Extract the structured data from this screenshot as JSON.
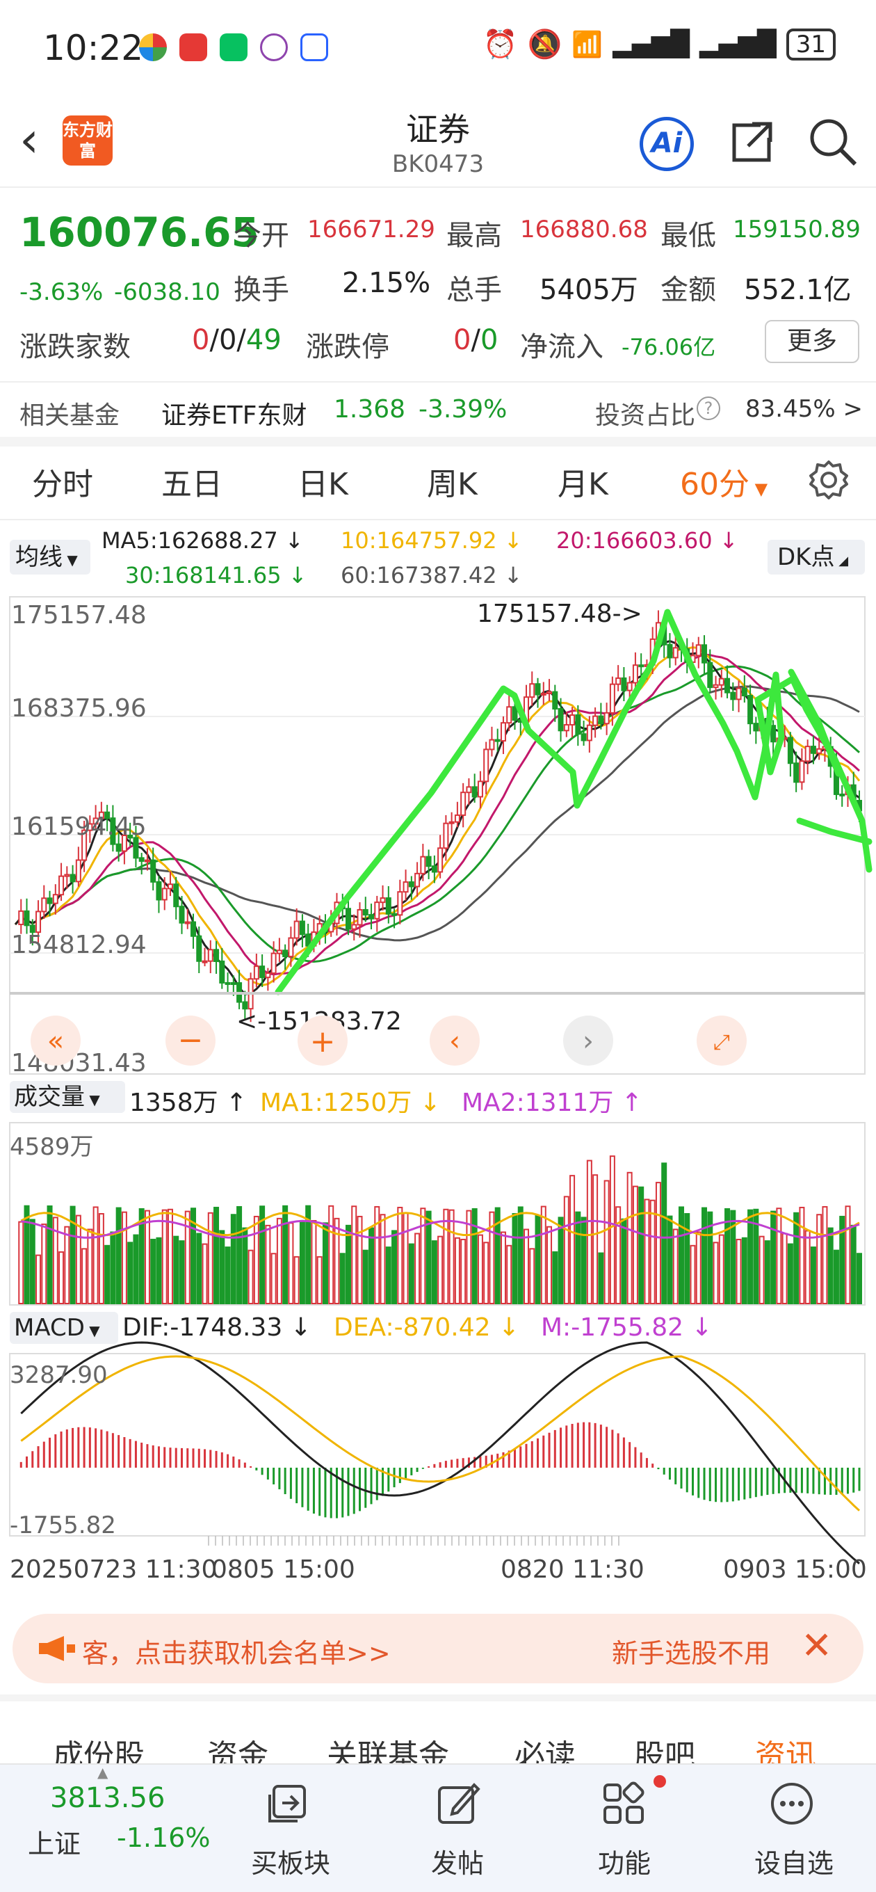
{
  "status_bar": {
    "time": "10:22",
    "battery": "31"
  },
  "header": {
    "logo_text": "东方财富",
    "title": "证券",
    "subtitle": "BK0473",
    "ai_label": "Ai"
  },
  "quote": {
    "price": "160076.65",
    "change_pct": "-3.63%",
    "change": "-6038.10",
    "open_label": "今开",
    "open": "166671.29",
    "high_label": "最高",
    "high": "166880.68",
    "low_label": "最低",
    "low": "159150.89",
    "turnover_label": "换手",
    "turnover": "2.15%",
    "volume_label": "总手",
    "volume": "5405万",
    "amount_label": "金额",
    "amount": "552.1亿",
    "breadth_label": "涨跌家数",
    "breadth_up": "0",
    "breadth_flat": "0",
    "breadth_down": "49",
    "limit_label": "涨跌停",
    "limit_up": "0",
    "limit_down": "0",
    "inflow_label": "净流入",
    "inflow": "-76.06亿",
    "more_label": "更多"
  },
  "fund": {
    "label": "相关基金",
    "name": "证券ETF东财",
    "price": "1.368",
    "change": "-3.39%",
    "ratio_label": "投资占比",
    "ratio": "83.45% >"
  },
  "period_tabs": [
    {
      "label": "分时"
    },
    {
      "label": "五日"
    },
    {
      "label": "日K"
    },
    {
      "label": "周K"
    },
    {
      "label": "月K"
    },
    {
      "label": "60分",
      "active": true
    }
  ],
  "ma_legend": {
    "type_label": "均线",
    "ma5": "MA5:162688.27 ↓",
    "ma10": "10:164757.92 ↓",
    "ma20": "20:166603.60 ↓",
    "ma30": "30:168141.65 ↓",
    "ma60": "60:167387.42 ↓",
    "dk_label": "DK点"
  },
  "kline": {
    "y_labels": [
      "175157.48",
      "168375.96",
      "161594.45",
      "154812.94",
      "148031.43"
    ],
    "high_annotation": "175157.48->",
    "low_annotation": "<-151283.72"
  },
  "volume_panel": {
    "type_label": "成交量",
    "current": "1358万 ↑",
    "ma1": "MA1:1250万 ↓",
    "ma2": "MA2:1311万 ↑",
    "max_label": "4589万"
  },
  "macd_panel": {
    "type_label": "MACD",
    "dif": "DIF:-1748.33 ↓",
    "dea": "DEA:-870.42 ↓",
    "m": "M:-1755.82 ↓",
    "max_label": "3287.90",
    "min_label": "-1755.82"
  },
  "x_axis": {
    "start": "20250723 11:30",
    "mid1": "0805 15:00",
    "mid2": "0820 11:30",
    "end": "0903 15:00"
  },
  "banner": {
    "text": "客，点击获取机会名单>>",
    "right_text": "新手选股不用"
  },
  "bottom_tabs": [
    {
      "label": "成份股"
    },
    {
      "label": "资金"
    },
    {
      "label": "关联基金"
    },
    {
      "label": "必读"
    },
    {
      "label": "股吧"
    },
    {
      "label": "资讯",
      "active": true
    }
  ],
  "tab_bar": {
    "index_value": "3813.56",
    "index_name": "上证",
    "index_change": "-1.16%",
    "items": [
      {
        "label": "买板块"
      },
      {
        "label": "发帖"
      },
      {
        "label": "功能"
      },
      {
        "label": "设自选"
      }
    ]
  },
  "colors": {
    "up": "#d8343c",
    "down": "#1a9a2a",
    "accent": "#f26d1a",
    "ma10": "#f0b400",
    "ma20": "#c2186b",
    "ma30": "#1a9a2a",
    "ma60": "#555555",
    "annotation": "#3de83d"
  }
}
